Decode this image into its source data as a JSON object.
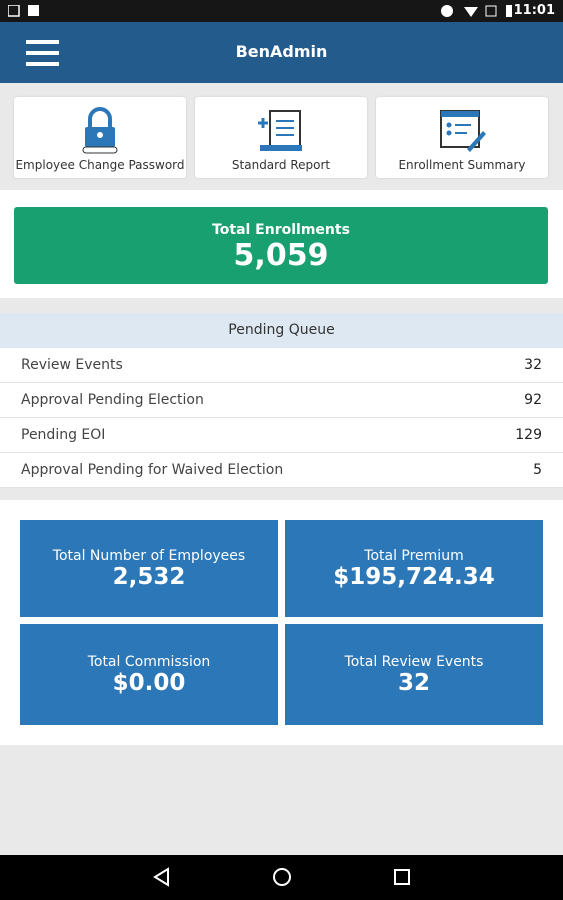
{
  "status_bar": {
    "time": "11:01"
  },
  "app_bar": {
    "title": "BenAdmin"
  },
  "shortcuts": [
    {
      "label": "Employee Change Password"
    },
    {
      "label": "Standard Report"
    },
    {
      "label": "Enrollment Summary"
    }
  ],
  "total_enrollments": {
    "label": "Total Enrollments",
    "value": "5,059"
  },
  "pending_queue": {
    "title": "Pending Queue",
    "rows": [
      {
        "label": "Review Events",
        "value": "32"
      },
      {
        "label": "Approval Pending Election",
        "value": "92"
      },
      {
        "label": "Pending EOI",
        "value": "129"
      },
      {
        "label": "Approval Pending for Waived Election",
        "value": "5"
      }
    ]
  },
  "stats": [
    {
      "label": "Total Number of Employees",
      "value": "2,532"
    },
    {
      "label": "Total Premium",
      "value": "$195,724.34"
    },
    {
      "label": "Total Commission",
      "value": "$0.00"
    },
    {
      "label": "Total Review Events",
      "value": "32"
    }
  ]
}
